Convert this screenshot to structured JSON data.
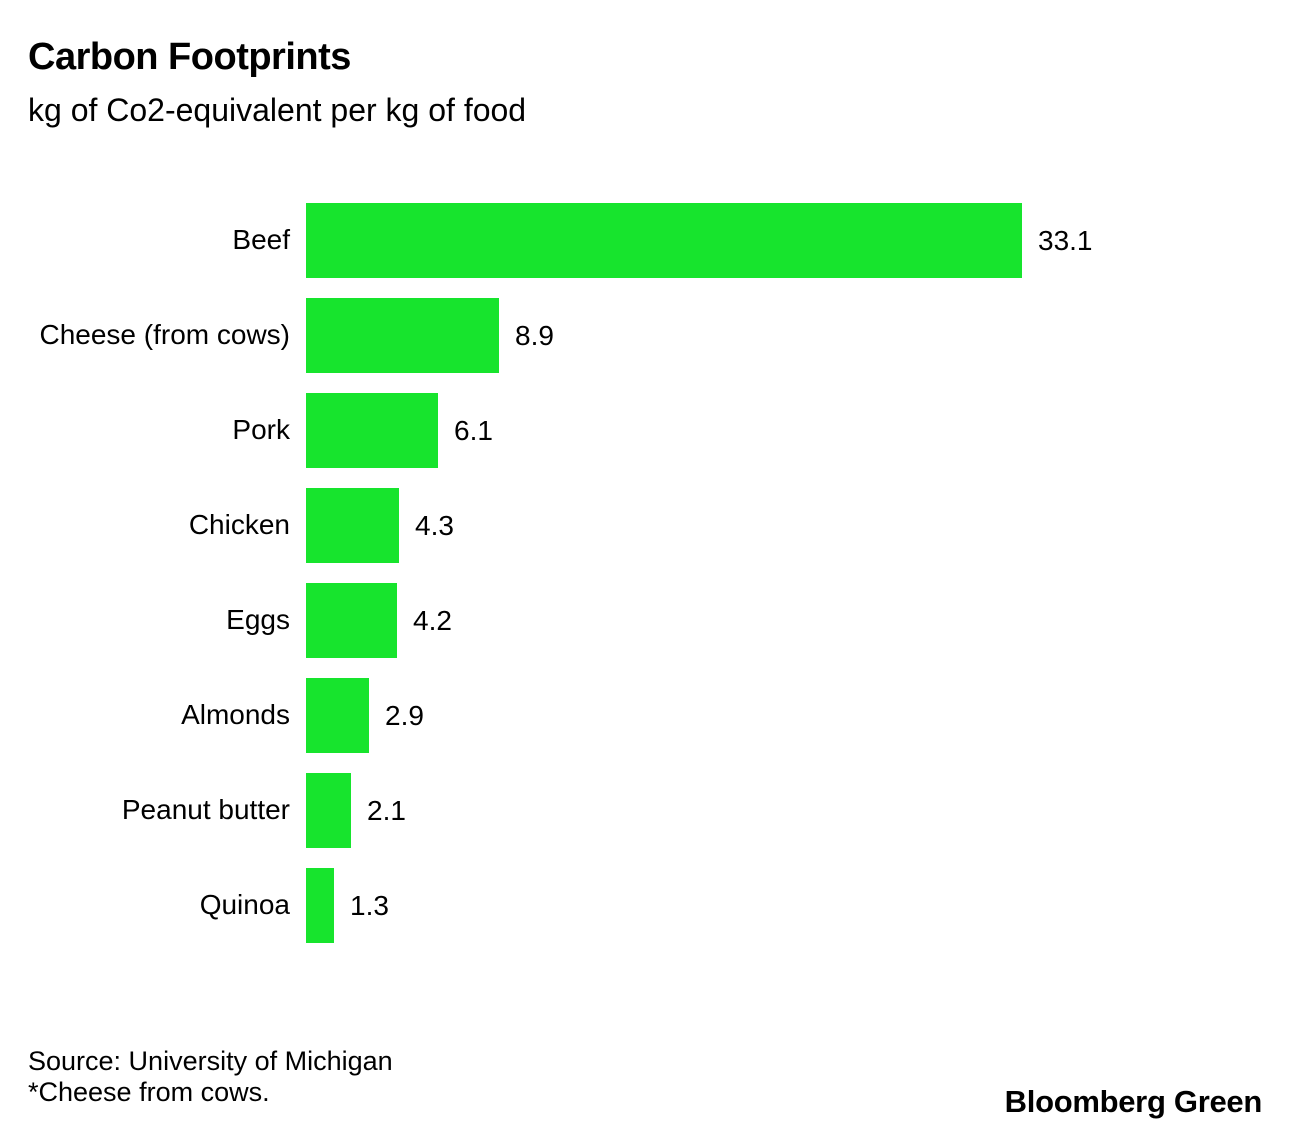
{
  "header": {
    "title": "Carbon Footprints",
    "subtitle": "kg of Co2-equivalent per kg of food"
  },
  "chart_data": {
    "type": "bar",
    "orientation": "horizontal",
    "title": "Carbon Footprints",
    "subtitle": "kg of Co2-equivalent per kg of food",
    "categories": [
      "Beef",
      "Cheese (from cows)",
      "Pork",
      "Chicken",
      "Eggs",
      "Almonds",
      "Peanut butter",
      "Quinoa"
    ],
    "values": [
      33.1,
      8.9,
      6.1,
      4.3,
      4.2,
      2.9,
      2.1,
      1.3
    ],
    "value_labels": [
      "33.1",
      "8.9",
      "6.1",
      "4.3",
      "4.2",
      "2.9",
      "2.1",
      "1.3"
    ],
    "xlabel": "",
    "ylabel": "",
    "xlim": [
      0,
      33.1
    ],
    "grid": false,
    "legend": false,
    "bar_color": "#17e42d",
    "value_label_position": "end-of-bar"
  },
  "footer": {
    "source": "Source: University of Michigan",
    "note": "*Cheese from cows.",
    "branding": "Bloomberg Green"
  },
  "colors": {
    "bar": "#17e42d",
    "text": "#000000",
    "background": "#ffffff"
  }
}
